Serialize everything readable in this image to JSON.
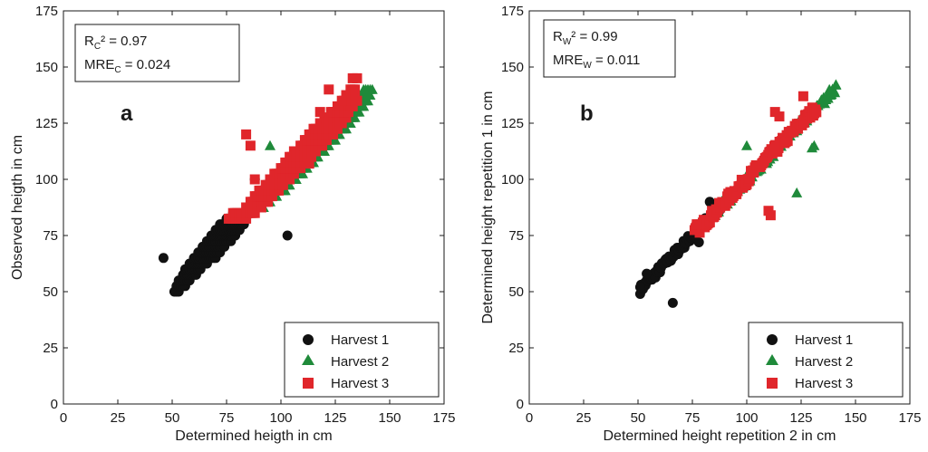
{
  "chart_data": [
    {
      "type": "scatter",
      "panel": "a",
      "xlabel": "Determined heigth in cm",
      "ylabel": "Observed heigth in cm",
      "xlim": [
        0,
        175
      ],
      "ylim": [
        0,
        175
      ],
      "xticks": [
        "0",
        "25",
        "50",
        "75",
        "100",
        "125",
        "150",
        "175"
      ],
      "yticks": [
        "0",
        "25",
        "50",
        "75",
        "100",
        "125",
        "150",
        "175"
      ],
      "stats": {
        "r2_base": "R",
        "r2_sub": "C",
        "r2_tail": "² = 0.97",
        "mre_base": "MRE",
        "mre_sub": "C",
        "mre_tail": " = 0.024"
      },
      "legend_position": "bottom-right",
      "legend": [
        "Harvest 1",
        "Harvest 2",
        "Harvest 3"
      ],
      "series": [
        {
          "name": "Harvest 1",
          "marker": "circle",
          "color": "#111111",
          "description": "points on discrete 2.5 cm observed-height bands",
          "bands": [
            [
              50,
              51,
              53
            ],
            [
              52.5,
              52,
              56
            ],
            [
              55,
              53,
              58
            ],
            [
              57.5,
              55,
              61
            ],
            [
              60,
              56,
              63
            ],
            [
              62.5,
              58,
              66
            ],
            [
              65,
              60,
              70
            ],
            [
              67.5,
              62,
              72
            ],
            [
              70,
              64,
              74
            ],
            [
              72.5,
              66,
              77
            ],
            [
              75,
              68,
              79
            ],
            [
              77.5,
              70,
              81
            ],
            [
              80,
              72,
              83
            ],
            [
              82.5,
              75,
              84
            ],
            [
              85,
              78,
              86
            ]
          ],
          "extra": [
            [
              46,
              65
            ],
            [
              88,
              100
            ],
            [
              103,
              75
            ]
          ]
        },
        {
          "name": "Harvest 2",
          "marker": "triangle",
          "color": "#1f8a3a",
          "bands": [
            [
              87.5,
              86,
              92
            ],
            [
              90,
              88,
              95
            ],
            [
              92.5,
              90,
              98
            ],
            [
              95,
              93,
              101
            ],
            [
              97.5,
              96,
              104
            ],
            [
              100,
              98,
              107
            ],
            [
              102.5,
              101,
              110
            ],
            [
              105,
              103,
              112
            ],
            [
              107.5,
              106,
              115
            ],
            [
              110,
              108,
              117
            ],
            [
              112.5,
              111,
              120
            ],
            [
              115,
              113,
              122
            ],
            [
              117.5,
              116,
              125
            ],
            [
              120,
              118,
              127
            ],
            [
              122.5,
              121,
              130
            ],
            [
              125,
              123,
              132
            ],
            [
              127.5,
              126,
              134
            ],
            [
              130,
              128,
              136
            ],
            [
              132.5,
              131,
              138
            ],
            [
              135,
              133,
              140
            ],
            [
              137.5,
              135,
              141
            ],
            [
              140,
              138,
              142
            ]
          ],
          "extra": [
            [
              95,
              115
            ],
            [
              102,
              95
            ]
          ]
        },
        {
          "name": "Harvest 3",
          "marker": "square",
          "color": "#e0262b",
          "bands": [
            [
              82.5,
              76,
              84
            ],
            [
              85,
              78,
              88
            ],
            [
              87.5,
              84,
              91
            ],
            [
              90,
              86,
              94
            ],
            [
              92.5,
              88,
              96
            ],
            [
              95,
              90,
              99
            ],
            [
              97.5,
              93,
              101
            ],
            [
              100,
              95,
              104
            ],
            [
              102.5,
              97,
              106
            ],
            [
              105,
              100,
              109
            ],
            [
              107.5,
              102,
              111
            ],
            [
              110,
              104,
              114
            ],
            [
              112.5,
              106,
              116
            ],
            [
              115,
              109,
              119
            ],
            [
              117.5,
              111,
              121
            ],
            [
              120,
              113,
              124
            ],
            [
              122.5,
              115,
              126
            ],
            [
              125,
              118,
              128
            ],
            [
              127.5,
              120,
              130
            ],
            [
              130,
              123,
              131
            ],
            [
              132.5,
              126,
              133
            ],
            [
              135,
              129,
              135
            ],
            [
              137.5,
              130,
              134
            ],
            [
              140,
              132,
              134
            ]
          ],
          "extra": [
            [
              84,
              120
            ],
            [
              86,
              115
            ],
            [
              88,
              100
            ],
            [
              122,
              140
            ],
            [
              128,
              135
            ],
            [
              133,
              145
            ],
            [
              135,
              145
            ],
            [
              118,
              130
            ],
            [
              113,
              107
            ]
          ]
        }
      ]
    },
    {
      "type": "scatter",
      "panel": "b",
      "xlabel": "Determined height repetition 2 in cm",
      "ylabel": "Determined height repetition 1 in cm",
      "xlim": [
        0,
        175
      ],
      "ylim": [
        0,
        175
      ],
      "xticks": [
        "0",
        "25",
        "50",
        "75",
        "100",
        "125",
        "150",
        "175"
      ],
      "yticks": [
        "0",
        "25",
        "50",
        "75",
        "100",
        "125",
        "150",
        "175"
      ],
      "stats": {
        "r2_base": "R",
        "r2_sub": "W",
        "r2_tail": "² = 0.99",
        "mre_base": "MRE",
        "mre_sub": "W",
        "mre_tail": " = 0.011"
      },
      "legend_position": "bottom-right",
      "legend": [
        "Harvest 1",
        "Harvest 2",
        "Harvest 3"
      ],
      "series": [
        {
          "name": "Harvest 1",
          "marker": "circle",
          "color": "#111111",
          "description": "dense diagonal cloud",
          "line": {
            "x_range": [
              51,
              88
            ],
            "slope": 1.0,
            "intercept": 0,
            "spread": 2.0,
            "n": 90
          },
          "extra": [
            [
              51,
              52
            ],
            [
              54,
              58
            ],
            [
              66,
              45
            ],
            [
              78,
              72
            ],
            [
              83,
              90
            ]
          ]
        },
        {
          "name": "Harvest 2",
          "marker": "triangle",
          "color": "#1f8a3a",
          "description": "dense diagonal cloud",
          "line": {
            "x_range": [
              85,
              141
            ],
            "slope": 1.0,
            "intercept": 0,
            "spread": 2.2,
            "n": 110
          },
          "extra": [
            [
              123,
              94
            ],
            [
              130,
              114
            ],
            [
              131,
              115
            ],
            [
              100,
              115
            ],
            [
              138,
              140
            ],
            [
              141,
              142
            ]
          ]
        },
        {
          "name": "Harvest 3",
          "marker": "square",
          "color": "#e0262b",
          "description": "dense diagonal cloud",
          "line": {
            "x_range": [
              76,
              132
            ],
            "slope": 1.0,
            "intercept": 0,
            "spread": 2.2,
            "n": 120
          },
          "extra": [
            [
              110,
              86
            ],
            [
              111,
              84
            ],
            [
              113,
              130
            ],
            [
              115,
              128
            ],
            [
              126,
              137
            ],
            [
              77,
              80
            ],
            [
              113,
              115
            ]
          ]
        }
      ]
    }
  ],
  "colors": {
    "axis": "#1a1a1a",
    "background": "#ffffff",
    "harvest1": "#111111",
    "harvest2": "#1f8a3a",
    "harvest3": "#e0262b"
  }
}
